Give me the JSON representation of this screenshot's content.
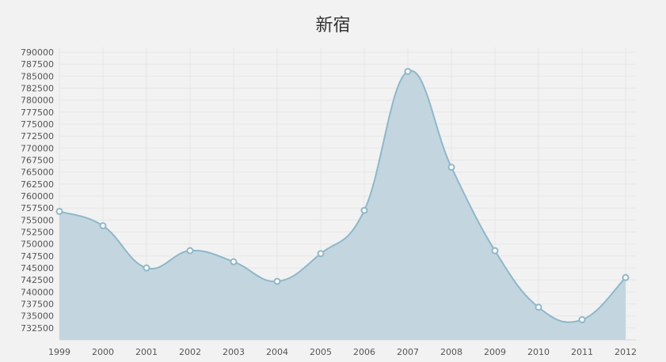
{
  "chart_data": {
    "type": "area",
    "title": "新宿",
    "xlabel": "",
    "ylabel": "",
    "x": [
      "1999",
      "2000",
      "2001",
      "2002",
      "2003",
      "2004",
      "2005",
      "2006",
      "2007",
      "2008",
      "2009",
      "2010",
      "2011",
      "2012"
    ],
    "series": [
      {
        "values": [
          756800,
          753800,
          745000,
          748600,
          746300,
          742200,
          748000,
          757000,
          786000,
          766000,
          748600,
          736800,
          734200,
          743000
        ]
      }
    ],
    "y_ticks": [
      "732500",
      "735000",
      "737500",
      "740000",
      "742500",
      "745000",
      "747500",
      "750000",
      "752500",
      "755000",
      "757500",
      "760000",
      "762500",
      "765000",
      "767500",
      "770000",
      "772500",
      "775000",
      "777500",
      "780000",
      "782500",
      "785000",
      "787500",
      "790000"
    ],
    "ylim": [
      730000,
      791000
    ],
    "grid": true,
    "legend": "none",
    "colors": {
      "line": "#8fb7ca",
      "fill": "#c3d6df",
      "marker_fill": "#ffffff",
      "marker_stroke": "#8fb7ca",
      "grid": "#e6e6e6",
      "background": "#f2f2f2"
    }
  }
}
